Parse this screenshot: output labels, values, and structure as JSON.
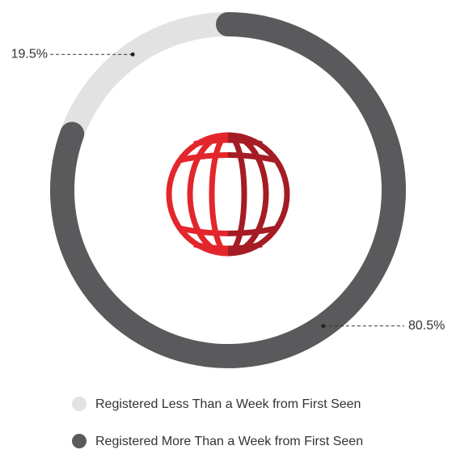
{
  "chart_data": {
    "type": "donut",
    "series": [
      {
        "name": "Registered Less Than a Week from First Seen",
        "color": "#e2e2e3"
      },
      {
        "name": "Registered More Than a Week from First Seen",
        "color": "#5a5a5c"
      }
    ],
    "values": [
      19.5,
      80.5
    ],
    "value_labels": [
      "19.5%",
      "80.5%"
    ]
  }
}
